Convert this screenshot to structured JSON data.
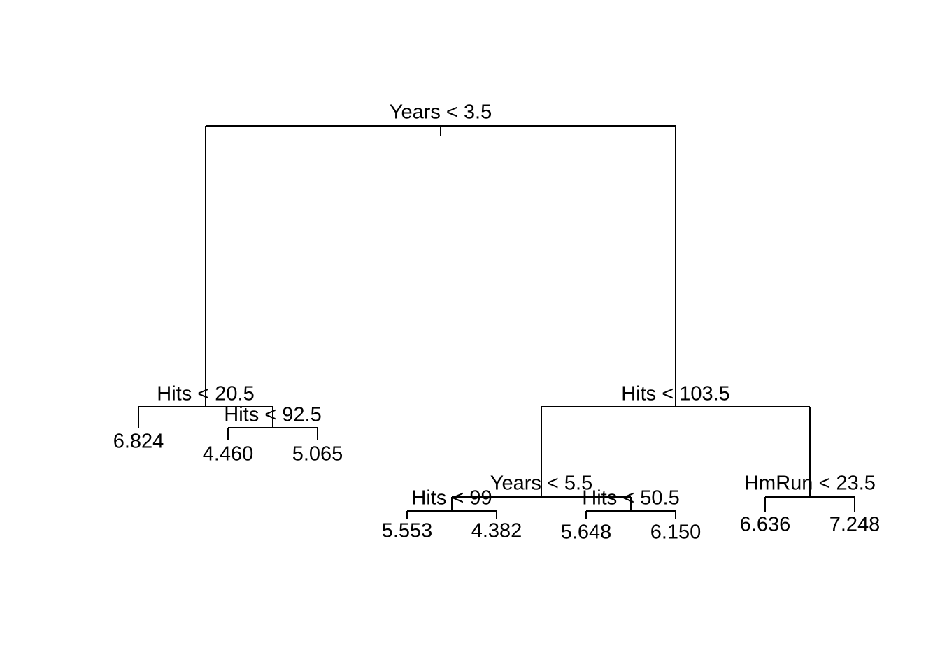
{
  "nodes": [
    {
      "label": "Years < 3.5"
    },
    {
      "label": "Hits < 20.5"
    },
    {
      "label": "Hits < 92.5"
    },
    {
      "label": "Hits < 103.5"
    },
    {
      "label": "Years < 5.5"
    },
    {
      "label": "Hits < 99"
    },
    {
      "label": "Hits < 50.5"
    },
    {
      "label": "HmRun < 23.5"
    }
  ],
  "leaves": [
    {
      "label": "6.824"
    },
    {
      "label": "4.460"
    },
    {
      "label": "5.065"
    },
    {
      "label": "5.553"
    },
    {
      "label": "4.382"
    },
    {
      "label": "5.648"
    },
    {
      "label": "6.150"
    },
    {
      "label": "6.636"
    },
    {
      "label": "7.248"
    }
  ]
}
